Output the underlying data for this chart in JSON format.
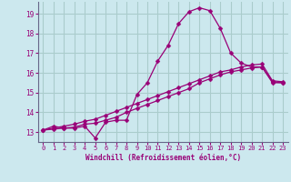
{
  "xlabel": "Windchill (Refroidissement éolien,°C)",
  "background_color": "#cce8ee",
  "grid_color": "#aacccc",
  "line_color": "#990077",
  "xlim": [
    -0.5,
    23.5
  ],
  "ylim": [
    12.5,
    19.6
  ],
  "xticks": [
    0,
    1,
    2,
    3,
    4,
    5,
    6,
    7,
    8,
    9,
    10,
    11,
    12,
    13,
    14,
    15,
    16,
    17,
    18,
    19,
    20,
    21,
    22,
    23
  ],
  "yticks": [
    13,
    14,
    15,
    16,
    17,
    18,
    19
  ],
  "line1_x": [
    0,
    1,
    2,
    3,
    4,
    5,
    6,
    7,
    8,
    9,
    10,
    11,
    12,
    13,
    14,
    15,
    16,
    17,
    18,
    19,
    20,
    21,
    22,
    23
  ],
  "line1_y": [
    13.1,
    13.3,
    13.2,
    13.2,
    13.3,
    12.7,
    13.5,
    13.6,
    13.6,
    14.9,
    15.5,
    16.6,
    17.4,
    18.5,
    19.1,
    19.3,
    19.15,
    18.25,
    17.0,
    16.5,
    16.3,
    16.3,
    15.5,
    15.5
  ],
  "line2_x": [
    0,
    1,
    2,
    3,
    4,
    5,
    6,
    7,
    8,
    9,
    10,
    11,
    12,
    13,
    14,
    15,
    16,
    17,
    18,
    19,
    20,
    21,
    22,
    23
  ],
  "line2_y": [
    13.1,
    13.15,
    13.2,
    13.25,
    13.4,
    13.45,
    13.6,
    13.75,
    14.0,
    14.2,
    14.4,
    14.6,
    14.8,
    15.0,
    15.2,
    15.5,
    15.7,
    15.9,
    16.05,
    16.15,
    16.25,
    16.3,
    15.55,
    15.5
  ],
  "line3_x": [
    0,
    1,
    2,
    3,
    4,
    5,
    6,
    7,
    8,
    9,
    10,
    11,
    12,
    13,
    14,
    15,
    16,
    17,
    18,
    19,
    20,
    21,
    22,
    23
  ],
  "line3_y": [
    13.1,
    13.2,
    13.3,
    13.4,
    13.55,
    13.65,
    13.85,
    14.05,
    14.25,
    14.45,
    14.65,
    14.85,
    15.05,
    15.25,
    15.45,
    15.65,
    15.85,
    16.05,
    16.15,
    16.3,
    16.4,
    16.45,
    15.6,
    15.55
  ]
}
